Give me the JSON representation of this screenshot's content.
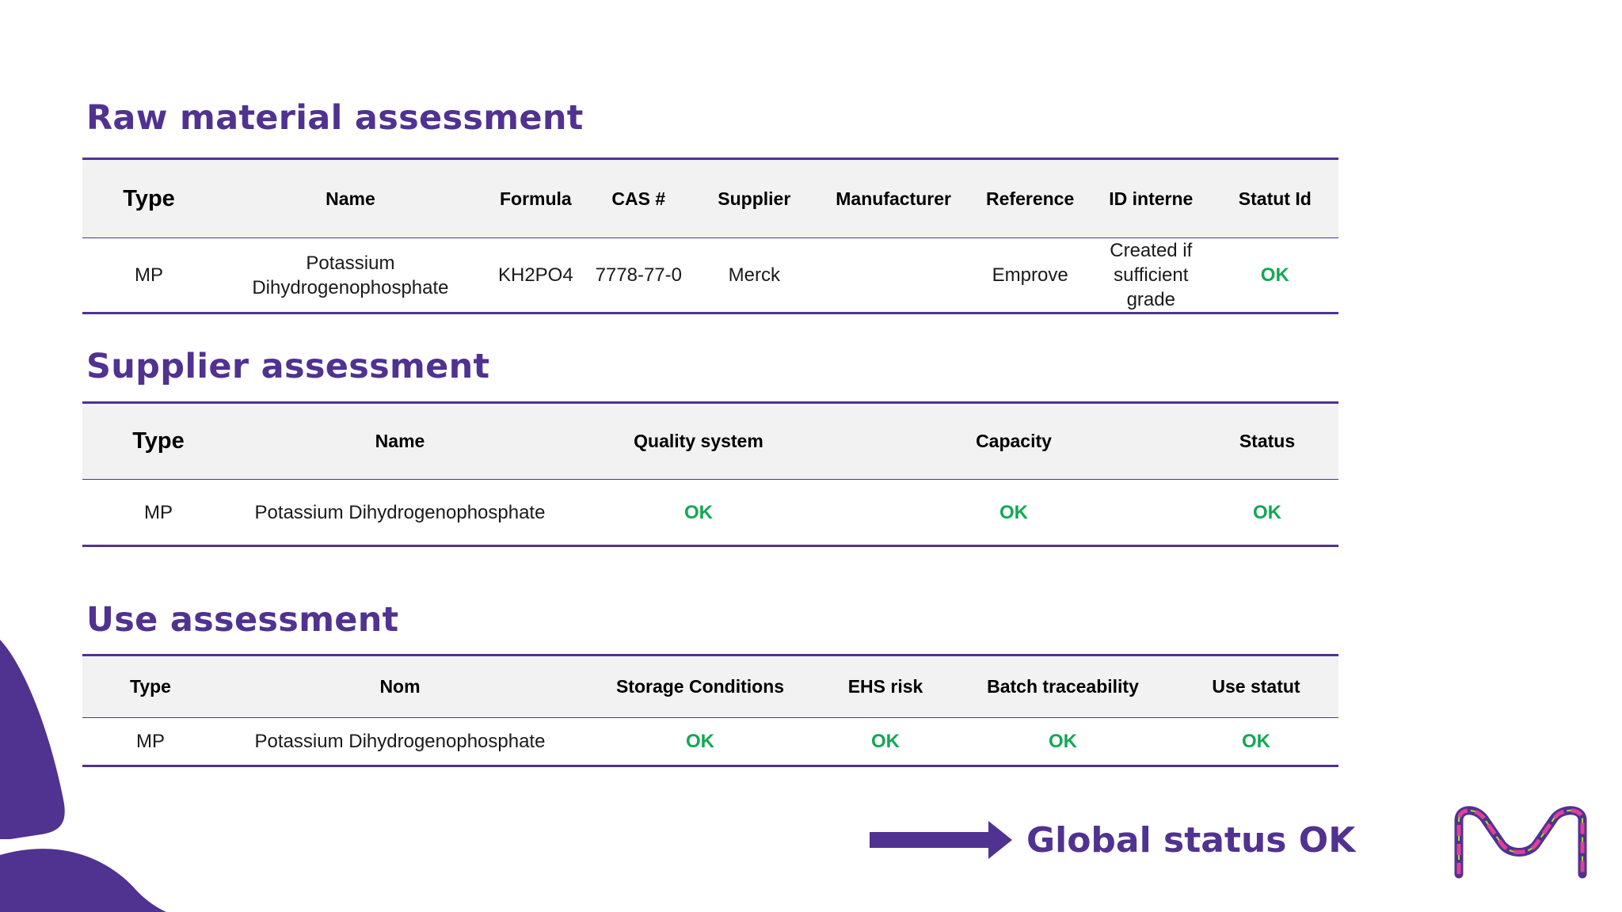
{
  "sections": {
    "raw": {
      "title": "Raw material assessment",
      "headers": {
        "type": "Type",
        "name": "Name",
        "formula": "Formula",
        "cas": "CAS #",
        "supplier": "Supplier",
        "manufacturer": "Manufacturer",
        "reference": "Reference",
        "id_interne": "ID interne",
        "statut_id": "Statut Id"
      },
      "row": {
        "type": "MP",
        "name": "Potassium Dihydrogenophosphate",
        "formula": "KH2PO4",
        "cas": "7778-77-0",
        "supplier": "Merck",
        "manufacturer": "",
        "reference": "Emprove",
        "id_interne": "Created if sufficient grade",
        "statut_id": "OK"
      }
    },
    "supplier": {
      "title": "Supplier assessment",
      "headers": {
        "type": "Type",
        "name": "Name",
        "quality_system": "Quality system",
        "capacity": "Capacity",
        "status": "Status"
      },
      "row": {
        "type": "MP",
        "name": "Potassium Dihydrogenophosphate",
        "quality_system": "OK",
        "capacity": "OK",
        "status": "OK"
      }
    },
    "use": {
      "title": "Use assessment",
      "headers": {
        "type": "Type",
        "nom": "Nom",
        "storage_conditions": "Storage Conditions",
        "ehs_risk": "EHS risk",
        "batch_traceability": "Batch traceability",
        "use_statut": "Use statut"
      },
      "row": {
        "type": "MP",
        "nom": "Potassium Dihydrogenophosphate",
        "storage_conditions": "OK",
        "ehs_risk": "OK",
        "batch_traceability": "OK",
        "use_statut": "OK"
      }
    }
  },
  "global_status": {
    "label": "Global status OK"
  },
  "colors": {
    "brand_purple": "#503291",
    "ok_green": "#12a854",
    "header_bg": "#f2f2f2"
  },
  "icons": {
    "arrow": "right-arrow-icon",
    "logo": "merck-m-logo"
  }
}
